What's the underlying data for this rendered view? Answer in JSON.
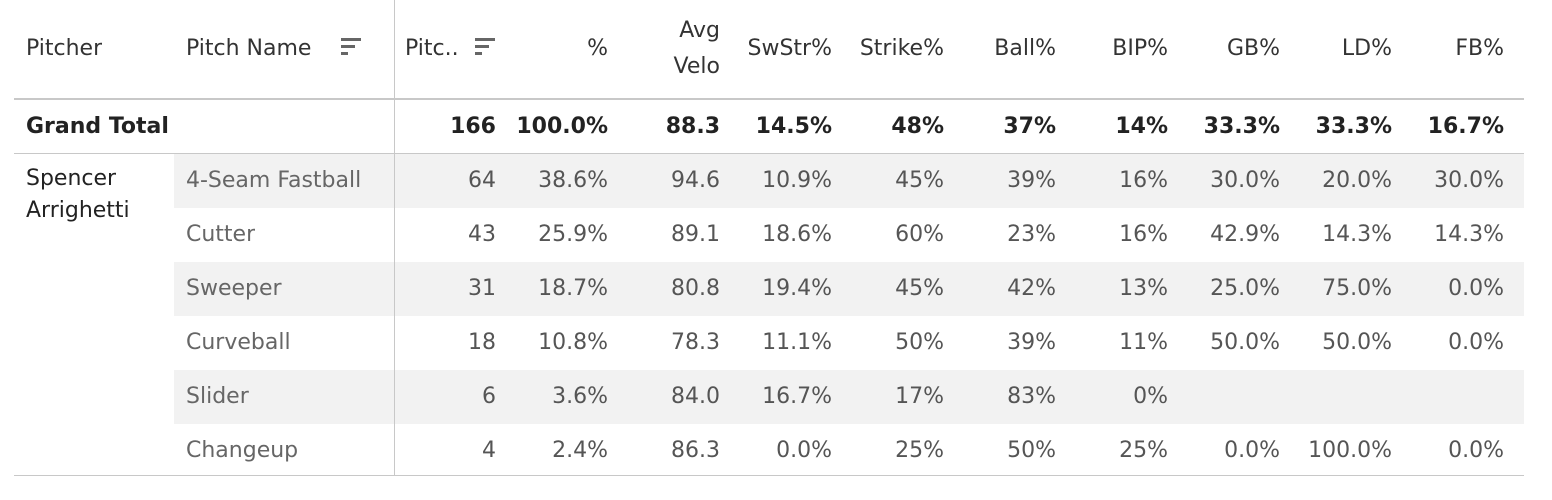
{
  "table": {
    "columns": {
      "pitcher": "Pitcher",
      "pitch_name": "Pitch Name",
      "pitches": "Pitc..",
      "pct": "%",
      "avg_velo_line1": "Avg",
      "avg_velo_line2": "Velo",
      "swstr": "SwStr%",
      "strike": "Strike%",
      "ball": "Ball%",
      "bip": "BIP%",
      "gb": "GB%",
      "ld": "LD%",
      "fb": "FB%"
    },
    "grand_total": {
      "label": "Grand Total",
      "pitches": "166",
      "pct": "100.0%",
      "avg_velo": "88.3",
      "swstr": "14.5%",
      "strike": "48%",
      "ball": "37%",
      "bip": "14%",
      "gb": "33.3%",
      "ld": "33.3%",
      "fb": "16.7%"
    },
    "pitcher": {
      "first_name": "Spencer",
      "last_name": "Arrighetti"
    },
    "rows": [
      {
        "pitch_name": "4-Seam Fastball",
        "pitches": "64",
        "pct": "38.6%",
        "avg_velo": "94.6",
        "swstr": "10.9%",
        "strike": "45%",
        "ball": "39%",
        "bip": "16%",
        "gb": "30.0%",
        "ld": "20.0%",
        "fb": "30.0%"
      },
      {
        "pitch_name": "Cutter",
        "pitches": "43",
        "pct": "25.9%",
        "avg_velo": "89.1",
        "swstr": "18.6%",
        "strike": "60%",
        "ball": "23%",
        "bip": "16%",
        "gb": "42.9%",
        "ld": "14.3%",
        "fb": "14.3%"
      },
      {
        "pitch_name": "Sweeper",
        "pitches": "31",
        "pct": "18.7%",
        "avg_velo": "80.8",
        "swstr": "19.4%",
        "strike": "45%",
        "ball": "42%",
        "bip": "13%",
        "gb": "25.0%",
        "ld": "75.0%",
        "fb": "0.0%"
      },
      {
        "pitch_name": "Curveball",
        "pitches": "18",
        "pct": "10.8%",
        "avg_velo": "78.3",
        "swstr": "11.1%",
        "strike": "50%",
        "ball": "39%",
        "bip": "11%",
        "gb": "50.0%",
        "ld": "50.0%",
        "fb": "0.0%"
      },
      {
        "pitch_name": "Slider",
        "pitches": "6",
        "pct": "3.6%",
        "avg_velo": "84.0",
        "swstr": "16.7%",
        "strike": "17%",
        "ball": "83%",
        "bip": "0%",
        "gb": "",
        "ld": "",
        "fb": ""
      },
      {
        "pitch_name": "Changeup",
        "pitches": "4",
        "pct": "2.4%",
        "avg_velo": "86.3",
        "swstr": "0.0%",
        "strike": "25%",
        "ball": "50%",
        "bip": "25%",
        "gb": "0.0%",
        "ld": "100.0%",
        "fb": "0.0%"
      }
    ]
  }
}
